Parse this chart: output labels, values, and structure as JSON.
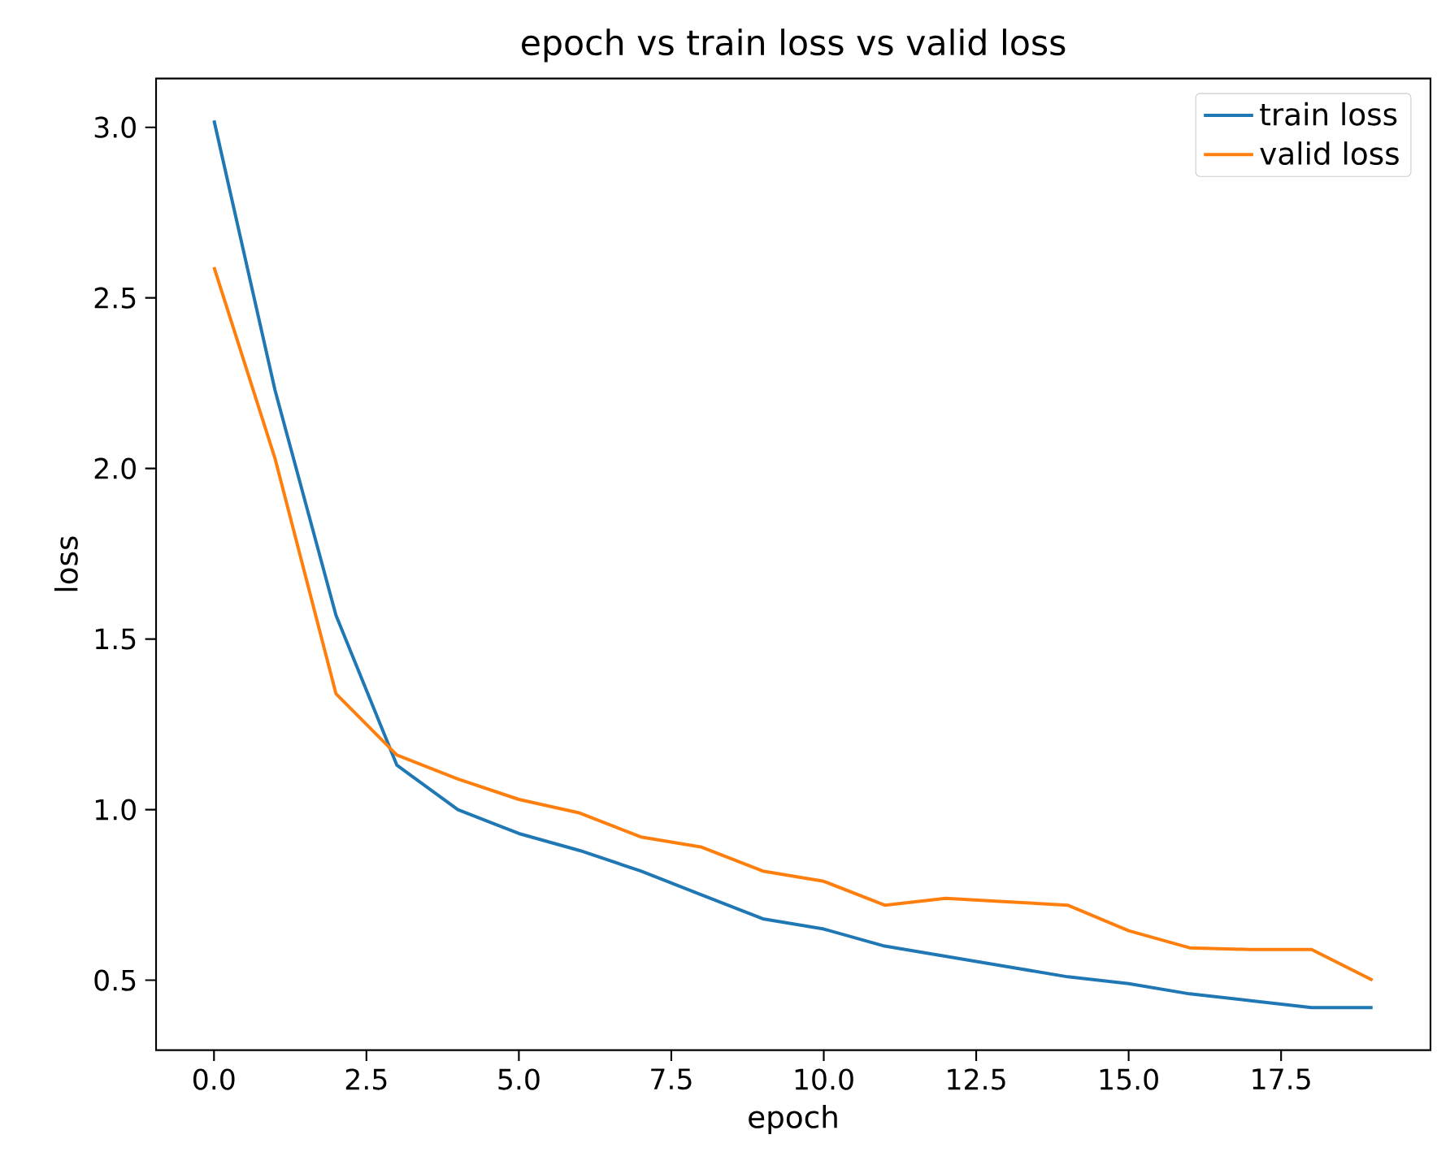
{
  "chart_data": {
    "type": "line",
    "title": "epoch vs train loss vs valid loss",
    "xlabel": "epoch",
    "ylabel": "loss",
    "x": [
      0,
      1,
      2,
      3,
      4,
      5,
      6,
      7,
      8,
      9,
      10,
      11,
      12,
      13,
      14,
      15,
      16,
      17,
      18,
      19
    ],
    "series": [
      {
        "name": "train loss",
        "color": "#1f77b4",
        "values": [
          3.02,
          2.23,
          1.57,
          1.13,
          1.0,
          0.93,
          0.88,
          0.82,
          0.75,
          0.68,
          0.65,
          0.6,
          0.57,
          0.54,
          0.51,
          0.49,
          0.46,
          0.44,
          0.42,
          0.42
        ]
      },
      {
        "name": "valid loss",
        "color": "#ff7f0e",
        "values": [
          2.59,
          2.03,
          1.34,
          1.16,
          1.09,
          1.03,
          0.99,
          0.92,
          0.89,
          0.82,
          0.79,
          0.72,
          0.74,
          0.73,
          0.72,
          0.645,
          0.595,
          0.59,
          0.59,
          0.5
        ]
      }
    ],
    "xlim": [
      -0.95,
      19.95
    ],
    "ylim": [
      0.295,
      3.143
    ],
    "xticks": [
      {
        "value": 0,
        "label": "0.0"
      },
      {
        "value": 2.5,
        "label": "2.5"
      },
      {
        "value": 5,
        "label": "5.0"
      },
      {
        "value": 7.5,
        "label": "7.5"
      },
      {
        "value": 10,
        "label": "10.0"
      },
      {
        "value": 12.5,
        "label": "12.5"
      },
      {
        "value": 15,
        "label": "15.0"
      },
      {
        "value": 17.5,
        "label": "17.5"
      }
    ],
    "yticks": [
      {
        "value": 0.5,
        "label": "0.5"
      },
      {
        "value": 1,
        "label": "1.0"
      },
      {
        "value": 1.5,
        "label": "1.5"
      },
      {
        "value": 2,
        "label": "2.0"
      },
      {
        "value": 2.5,
        "label": "2.5"
      },
      {
        "value": 3,
        "label": "3.0"
      }
    ],
    "grid": false,
    "legend": "top right",
    "marker": "none",
    "line_style": "solid"
  }
}
